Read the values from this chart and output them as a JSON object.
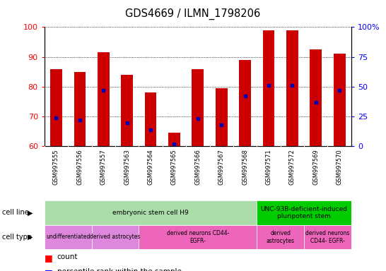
{
  "title": "GDS4669 / ILMN_1798206",
  "samples": [
    "GSM997555",
    "GSM997556",
    "GSM997557",
    "GSM997563",
    "GSM997564",
    "GSM997565",
    "GSM997566",
    "GSM997567",
    "GSM997568",
    "GSM997571",
    "GSM997572",
    "GSM997569",
    "GSM997570"
  ],
  "count_values": [
    86,
    85,
    91.5,
    84,
    78,
    64.5,
    86,
    79.5,
    89,
    99,
    99,
    92.5,
    91
  ],
  "percentile_values": [
    24,
    22,
    47,
    20,
    14,
    2,
    23,
    18,
    42,
    51,
    51,
    37,
    47
  ],
  "ylim": [
    60,
    100
  ],
  "y2lim": [
    0,
    100
  ],
  "yticks": [
    60,
    70,
    80,
    90,
    100
  ],
  "y2ticks": [
    0,
    25,
    50,
    75,
    100
  ],
  "bar_color": "#cc0000",
  "dot_color": "#0000bb",
  "cell_line_groups": [
    {
      "label": "embryonic stem cell H9",
      "start": 0,
      "end": 8,
      "color": "#aaddaa"
    },
    {
      "label": "UNC-93B-deficient-induced\npluripotent stem",
      "start": 9,
      "end": 12,
      "color": "#00cc00"
    }
  ],
  "cell_type_groups": [
    {
      "label": "undifferentiated",
      "start": 0,
      "end": 1,
      "color": "#dd88dd"
    },
    {
      "label": "derived astrocytes",
      "start": 2,
      "end": 3,
      "color": "#dd88dd"
    },
    {
      "label": "derived neurons CD44-\nEGFR-",
      "start": 4,
      "end": 8,
      "color": "#ee66bb"
    },
    {
      "label": "derived\nastrocytes",
      "start": 9,
      "end": 10,
      "color": "#ee66bb"
    },
    {
      "label": "derived neurons\nCD44- EGFR-",
      "start": 11,
      "end": 12,
      "color": "#ee66bb"
    }
  ]
}
